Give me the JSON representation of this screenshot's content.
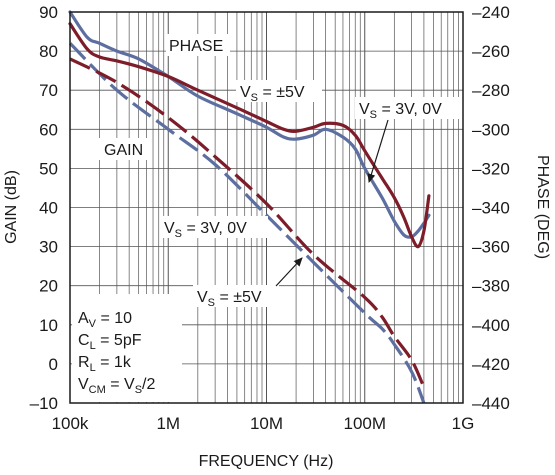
{
  "chart_data": {
    "type": "line",
    "xscale": "log",
    "xlabel": "FREQUENCY (Hz)",
    "ylabel_left": "GAIN (dB)",
    "ylabel_right": "PHASE (DEG)",
    "xlim": [
      100000,
      1000000000
    ],
    "ylim_left": [
      -10,
      90
    ],
    "ylim_right": [
      -440,
      -240
    ],
    "x_tick_labels": [
      "100k",
      "1M",
      "10M",
      "100M",
      "1G"
    ],
    "y_left_tick_labels": [
      "90",
      "80",
      "70",
      "60",
      "50",
      "40",
      "30",
      "20",
      "10",
      "0",
      "–10"
    ],
    "y_right_tick_labels": [
      "–240",
      "–260",
      "–280",
      "–300",
      "–320",
      "–340",
      "–360",
      "–380",
      "–400",
      "–420",
      "–440"
    ],
    "grid": true,
    "colors": {
      "red": "#7e1d2a",
      "blue": "#5d6fa0",
      "grid": "#555555"
    },
    "series": [
      {
        "axis": "right",
        "color": "red",
        "style": "solid",
        "x": [
          100000,
          150000,
          200000,
          300000,
          500000,
          1000000,
          2000000,
          5000000,
          10000000,
          15000000,
          20000000,
          30000000,
          40000000,
          60000000,
          80000000,
          100000000,
          150000000,
          200000000,
          250000000,
          300000000,
          350000000,
          400000000,
          450000000
        ],
        "y": [
          -246,
          -259,
          -263,
          -265,
          -268,
          -273,
          -280,
          -289,
          -296,
          -300,
          -301,
          -299,
          -297,
          -298,
          -303,
          -311,
          -325,
          -335,
          -345,
          -355,
          -360,
          -352,
          -334
        ]
      },
      {
        "axis": "right",
        "color": "blue",
        "style": "solid",
        "x": [
          100000,
          150000,
          200000,
          300000,
          500000,
          1000000,
          2000000,
          5000000,
          10000000,
          15000000,
          20000000,
          30000000,
          40000000,
          60000000,
          80000000,
          100000000,
          150000000,
          200000000,
          250000000,
          300000000,
          350000000,
          400000000,
          450000000
        ],
        "y": [
          -240,
          -253,
          -256,
          -260,
          -264,
          -273,
          -283,
          -292,
          -299,
          -304,
          -305,
          -303,
          -300,
          -304,
          -310,
          -320,
          -335,
          -347,
          -354,
          -355,
          -352,
          -348,
          -344
        ]
      },
      {
        "axis": "left",
        "color": "red",
        "style": "dashed",
        "x": [
          100000,
          300000,
          1000000,
          3000000,
          10000000,
          30000000,
          100000000,
          150000000,
          200000000,
          300000000,
          400000000
        ],
        "y": [
          78,
          72,
          63,
          53,
          41,
          28,
          17,
          12,
          7,
          1,
          -6
        ]
      },
      {
        "axis": "left",
        "color": "blue",
        "style": "dashed",
        "x": [
          100000,
          300000,
          1000000,
          3000000,
          10000000,
          30000000,
          100000000,
          150000000,
          200000000,
          300000000,
          400000000
        ],
        "y": [
          82,
          70,
          60,
          51,
          38,
          26,
          13,
          9,
          5,
          -2,
          -10
        ]
      }
    ]
  },
  "labels": {
    "phase": "PHASE",
    "gain": "GAIN",
    "vs_pm5_phase": {
      "main": "V",
      "sub": "S",
      "rest": " = ±5V"
    },
    "vs_3v_phase": {
      "main": "V",
      "sub": "S",
      "rest": " = 3V, 0V"
    },
    "vs_3v_gain": {
      "main": "V",
      "sub": "S",
      "rest": " = 3V, 0V"
    },
    "vs_pm5_gain": {
      "main": "V",
      "sub": "S",
      "rest": " = ±5V"
    }
  },
  "conditions": [
    {
      "main": "A",
      "sub": "V",
      "rest": " = 10"
    },
    {
      "main": "C",
      "sub": "L",
      "rest": " = 5pF"
    },
    {
      "main": "R",
      "sub": "L",
      "rest": " = 1k"
    },
    {
      "main": "V",
      "sub": "CM",
      "rest": " = V",
      "sub2": "S",
      "rest2": "/2"
    }
  ]
}
